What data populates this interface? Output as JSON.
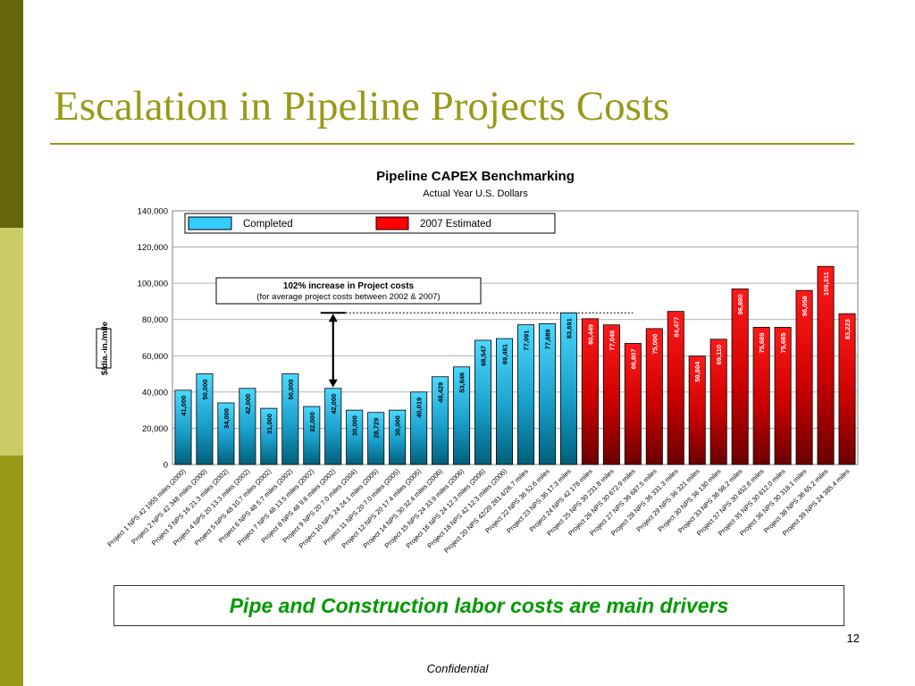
{
  "slide": {
    "title": "Escalation in Pipeline Projects Costs",
    "callout": "Pipe and Construction labor costs are main drivers",
    "page_number": "12",
    "footer": "Confidential"
  },
  "colors": {
    "title": "#999919",
    "completed": "#33ccff",
    "estimated": "#ff0000",
    "callout_text": "#009900"
  },
  "chart_data": {
    "type": "bar",
    "title": "Pipeline CAPEX Benchmarking",
    "subtitle": "Actual Year U.S. Dollars",
    "ylabel": "$/dia.-in./mile",
    "xlabel": "",
    "ylim": [
      0,
      140000
    ],
    "yticks": [
      "0",
      "20,000",
      "40,000",
      "60,000",
      "80,000",
      "100,000",
      "120,000",
      "140,000"
    ],
    "grid": true,
    "legend": {
      "position": "top",
      "entries": [
        {
          "name": "Completed",
          "color": "#33ccff"
        },
        {
          "name": "2007 Estimated",
          "color": "#ff0000"
        }
      ]
    },
    "annotation": {
      "line1": "102% increase in Project costs",
      "line2": "(for average project costs between 2002 & 2007)"
    },
    "categories": [
      "Project 1 NPS 42 1955 miles (2000)",
      "Project 2 NPS 42 348 miles (2000)",
      "Project 3 NPS 16 21.3 miles (2002)",
      "Project 4 NPS 20 13.3 miles (2002)",
      "Project 5 NPS 48 10.7 miles (2002)",
      "Project 6 NPS 48 5.7 miles (2002)",
      "Project 7 NPS 48 13.5 miles (2002)",
      "Project 8 NPS 48 9.6 miles (2002)",
      "Project 9 NPS 20 7.0 miles (2004)",
      "Project 10 NPS 24 24.1 miles (2005)",
      "Project 11 NPS 20 7.0 miles (2005)",
      "Project 12 NPS 20 17.4 miles (2005)",
      "Project 14 NPS 30 32.4 miles (2006)",
      "Project 15 NPS 24 33.9 miles (2006)",
      "Project 16 NPS 24 12.3 miles (2006)",
      "Project 18 NPS 42 12.3 miles (2006)",
      "Project 20 NPS 42/20 281.4/26.7 miles",
      "Project 22 NPS 36 52.6 miles",
      "Project 23 NPS 36 17.3 miles",
      "Project 24 NPS 42 178 miles",
      "Project 25 NPS 30 231.8 miles",
      "Project 26 NPS 30 672.9 miles",
      "Project 27 NPS 36 687.5 miles",
      "Project 28 NPS 36 331.3 miles",
      "Project 29 NPS 36 321 miles",
      "Project 30 NPS 36 130 miles",
      "Project 33 NPS 36 98.2 miles",
      "Project 37 NPS 30 452.6 miles",
      "Project 35 NPS 30 612.0 miles",
      "Project 36 NPS 30 318.1 miles",
      "Project 38 NPS 36 65.2 miles",
      "Project 39 NPS 24 385.4 miles"
    ],
    "values": [
      41000,
      50000,
      34000,
      42000,
      31000,
      50000,
      32000,
      42000,
      30000,
      28729,
      30000,
      40019,
      48429,
      53846,
      68547,
      69481,
      77091,
      77689,
      83691,
      80449,
      77046,
      66807,
      75000,
      84477,
      59804,
      69110,
      96880,
      75689,
      75685,
      96058,
      109311,
      83223
    ],
    "labels": [
      "41,000",
      "50,000",
      "34,000",
      "42,000",
      "31,000",
      "50,000",
      "32,000",
      "42,000",
      "30,000",
      "28,729",
      "30,000",
      "40,019",
      "48,429",
      "53,846",
      "68,547",
      "69,481",
      "77,091",
      "77,689",
      "83,691",
      "80,449",
      "77,046",
      "66,807",
      "75,000",
      "84,477",
      "59,804",
      "69,110",
      "96,880",
      "75,689",
      "75,685",
      "96,058",
      "109,311",
      "83,223"
    ],
    "status": [
      "Completed",
      "Completed",
      "Completed",
      "Completed",
      "Completed",
      "Completed",
      "Completed",
      "Completed",
      "Completed",
      "Completed",
      "Completed",
      "Completed",
      "Completed",
      "Completed",
      "Completed",
      "Completed",
      "Completed",
      "Completed",
      "Completed",
      "2007 Estimated",
      "2007 Estimated",
      "2007 Estimated",
      "2007 Estimated",
      "2007 Estimated",
      "2007 Estimated",
      "2007 Estimated",
      "2007 Estimated",
      "2007 Estimated",
      "2007 Estimated",
      "2007 Estimated",
      "2007 Estimated",
      "2007 Estimated"
    ]
  }
}
